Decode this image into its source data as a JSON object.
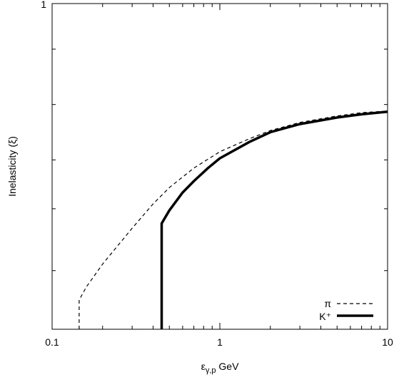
{
  "chart_data": {
    "type": "line",
    "title": "",
    "xlabel": {
      "main": "ε",
      "sub": "γ,p",
      "rest": " GeV"
    },
    "ylabel": "Inelasticity (ξ)",
    "xscale": "log",
    "xlim": [
      0.1,
      10
    ],
    "ylim": [
      0,
      1
    ],
    "xticks": [
      {
        "value": 0.1,
        "label": "0.1"
      },
      {
        "value": 1,
        "label": "1"
      },
      {
        "value": 10,
        "label": "10"
      }
    ],
    "yticks": [
      {
        "value": 1,
        "label": "1"
      }
    ],
    "grid": false,
    "legend": {
      "position": "bottom-right"
    },
    "series": [
      {
        "name": "π",
        "style": "dashed",
        "color": "#000000",
        "points": [
          [
            0.145,
            0.0
          ],
          [
            0.145,
            0.09
          ],
          [
            0.16,
            0.13
          ],
          [
            0.2,
            0.2
          ],
          [
            0.3,
            0.31
          ],
          [
            0.4,
            0.385
          ],
          [
            0.5,
            0.435
          ],
          [
            0.7,
            0.495
          ],
          [
            1.0,
            0.545
          ],
          [
            1.5,
            0.585
          ],
          [
            2.0,
            0.61
          ],
          [
            3.0,
            0.635
          ],
          [
            5.0,
            0.655
          ],
          [
            7.0,
            0.665
          ],
          [
            10.0,
            0.67
          ]
        ]
      },
      {
        "name": "K⁺",
        "style": "solid-thick",
        "color": "#000000",
        "points": [
          [
            0.45,
            0.0
          ],
          [
            0.45,
            0.325
          ],
          [
            0.5,
            0.365
          ],
          [
            0.6,
            0.42
          ],
          [
            0.7,
            0.455
          ],
          [
            0.85,
            0.495
          ],
          [
            1.0,
            0.525
          ],
          [
            1.5,
            0.575
          ],
          [
            2.0,
            0.605
          ],
          [
            3.0,
            0.63
          ],
          [
            5.0,
            0.65
          ],
          [
            7.0,
            0.66
          ],
          [
            10.0,
            0.668
          ]
        ]
      }
    ]
  }
}
